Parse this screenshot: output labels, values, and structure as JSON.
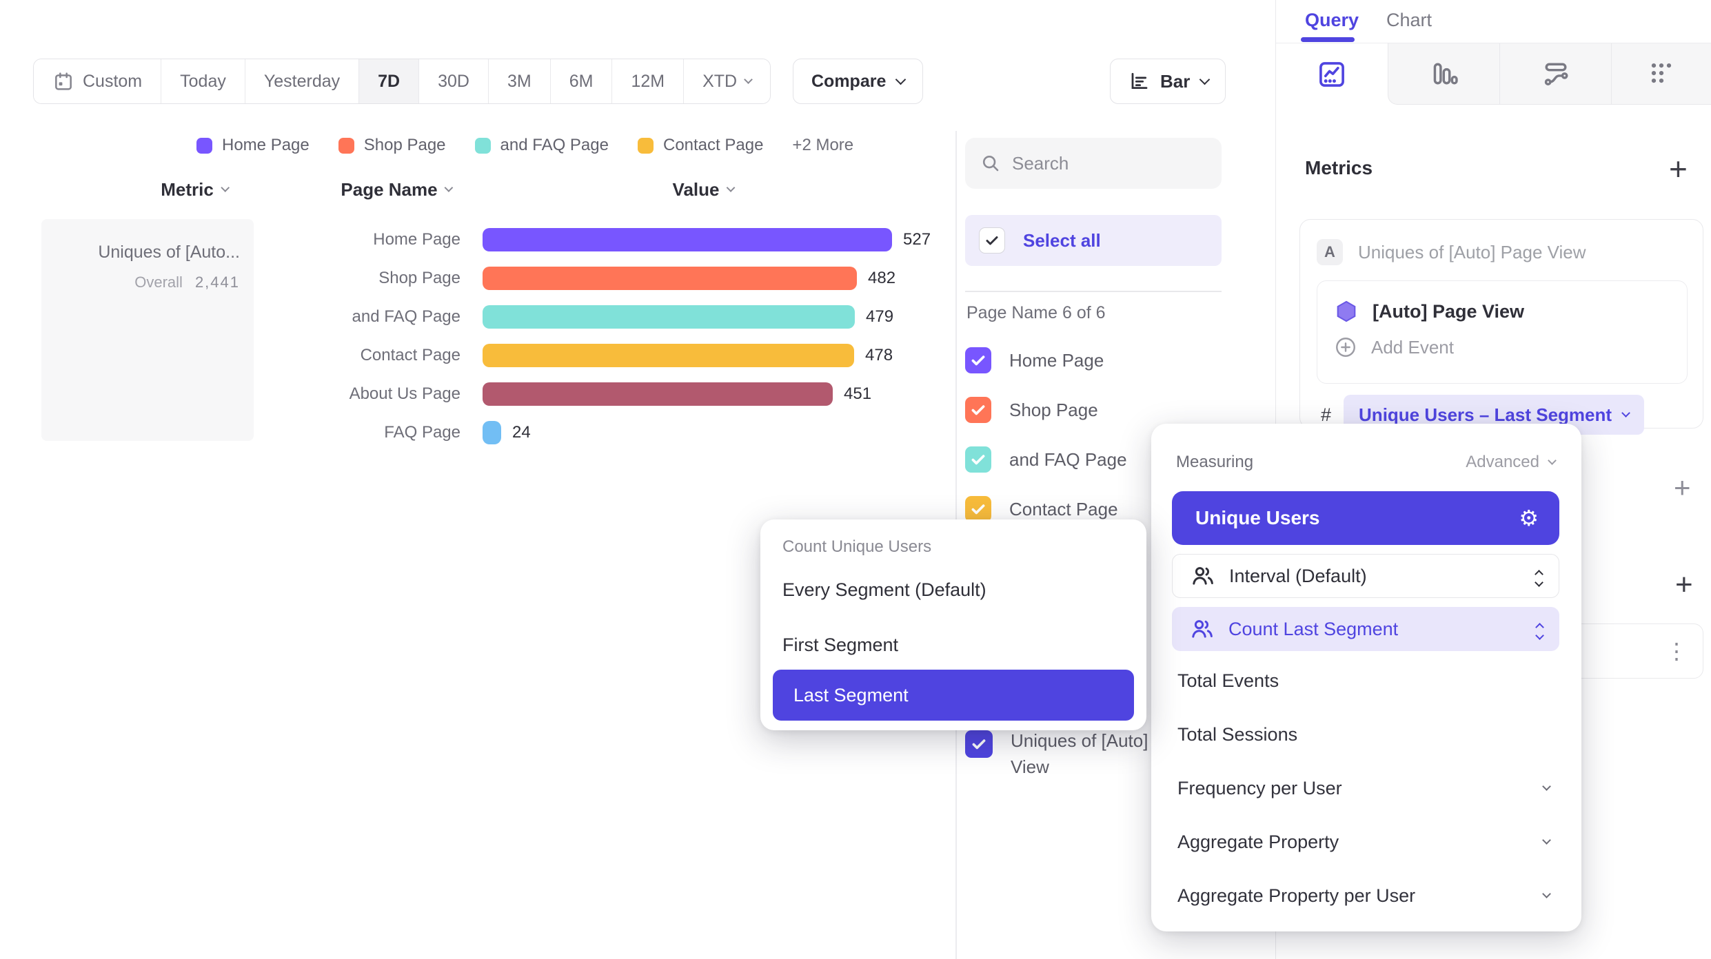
{
  "colors": {
    "accent": "#4F44E0",
    "accent_light_bg": "#E9E7FB",
    "series": [
      "#7856FF",
      "#FF7557",
      "#80E1D9",
      "#F8BC3B",
      "#B2596E",
      "#72BEF4"
    ]
  },
  "toolbar": {
    "date_ranges": [
      "Custom",
      "Today",
      "Yesterday",
      "7D",
      "30D",
      "3M",
      "6M",
      "12M",
      "XTD"
    ],
    "active_range": "7D",
    "compare_label": "Compare",
    "chart_type_label": "Bar"
  },
  "legend": {
    "items": [
      {
        "label": "Home Page",
        "color": "#7856FF"
      },
      {
        "label": "Shop Page",
        "color": "#FF7557"
      },
      {
        "label": "and FAQ Page",
        "color": "#80E1D9"
      },
      {
        "label": "Contact Page",
        "color": "#F8BC3B"
      }
    ],
    "more_label": "+2 More"
  },
  "columns": {
    "metric": "Metric",
    "page_name": "Page Name",
    "value": "Value"
  },
  "metric_cell": {
    "title": "Uniques of [Auto...",
    "overall_label": "Overall",
    "overall_value": "2,441"
  },
  "chart_data": {
    "type": "bar",
    "orientation": "horizontal",
    "title": "Uniques of [Auto] Page View",
    "categories": [
      "Home Page",
      "Shop Page",
      "and FAQ Page",
      "Contact Page",
      "About Us Page",
      "FAQ Page"
    ],
    "values": [
      527,
      482,
      479,
      478,
      451,
      24
    ],
    "colors": [
      "#7856FF",
      "#FF7557",
      "#80E1D9",
      "#F8BC3B",
      "#B2596E",
      "#72BEF4"
    ],
    "overall_value": 2441,
    "legend_position": "top",
    "grid": false
  },
  "filter_panel": {
    "search_placeholder": "Search",
    "select_all_label": "Select all",
    "group_label": "Page Name 6 of 6",
    "items": [
      {
        "label": "Home Page",
        "color": "#7856FF",
        "checked": true
      },
      {
        "label": "Shop Page",
        "color": "#FF7557",
        "checked": true
      },
      {
        "label": "and FAQ Page",
        "color": "#80E1D9",
        "checked": true
      },
      {
        "label": "Contact Page",
        "color": "#F8BC3B",
        "checked": true
      },
      {
        "label": "About Us Page",
        "color": "#B2596E",
        "checked": true
      },
      {
        "label": "FAQ Page",
        "color": "#72BEF4",
        "checked": true
      }
    ],
    "metric_item": {
      "label": "Uniques of [Auto] Page View",
      "color": "#4F44E0",
      "checked": true
    }
  },
  "right_panel": {
    "tabs": [
      "Query",
      "Chart"
    ],
    "active_tab": "Query",
    "metrics_heading": "Metrics",
    "metric": {
      "badge": "A",
      "title": "Uniques of [Auto] Page View",
      "event_label": "[Auto] Page View",
      "add_event_label": "Add Event",
      "hash": "#",
      "measure_label": "Unique Users – Last Segment"
    }
  },
  "measuring_menu": {
    "header": "Measuring",
    "advanced_label": "Advanced",
    "selected_option": "Unique Users",
    "interval_option": "Interval (Default)",
    "count_option": "Count Last Segment",
    "options": [
      {
        "label": "Total Events",
        "expandable": false
      },
      {
        "label": "Total Sessions",
        "expandable": false
      },
      {
        "label": "Frequency per User",
        "expandable": true
      },
      {
        "label": "Aggregate Property",
        "expandable": true
      },
      {
        "label": "Aggregate Property per User",
        "expandable": true
      }
    ]
  },
  "segment_menu": {
    "title": "Count Unique Users",
    "options": [
      "Every Segment (Default)",
      "First Segment",
      "Last Segment"
    ],
    "selected": "Last Segment"
  }
}
